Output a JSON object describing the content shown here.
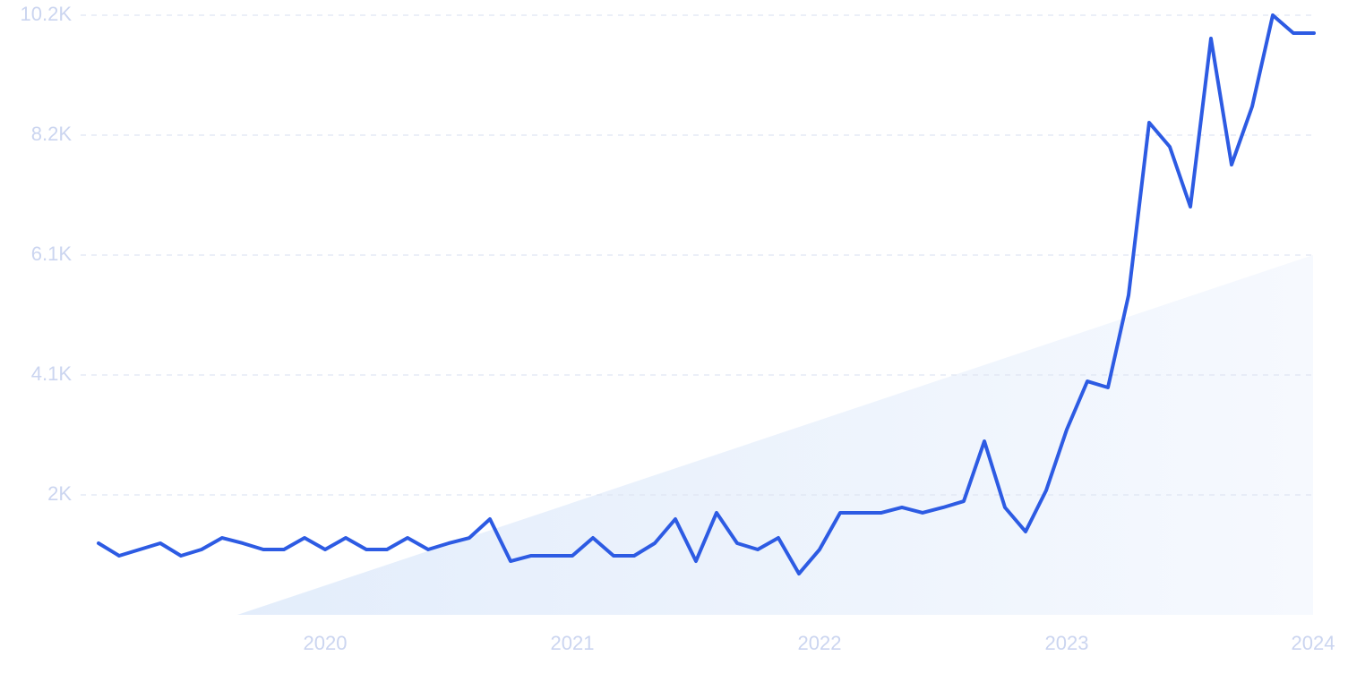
{
  "chart_data": {
    "type": "line",
    "categories": [
      null,
      null,
      null,
      null,
      null,
      null,
      null,
      null,
      null,
      null,
      null,
      "2020",
      null,
      null,
      null,
      null,
      null,
      null,
      null,
      null,
      null,
      null,
      null,
      "2021",
      null,
      null,
      null,
      null,
      null,
      null,
      null,
      null,
      null,
      null,
      null,
      "2022",
      null,
      null,
      null,
      null,
      null,
      null,
      null,
      null,
      null,
      null,
      null,
      "2023",
      null,
      null,
      null,
      null,
      null,
      null,
      null,
      null,
      null,
      null,
      null,
      "2024"
    ],
    "values": [
      1218,
      1005,
      1111,
      1218,
      1005,
      1111,
      1309,
      1218,
      1111,
      1111,
      1309,
      1111,
      1309,
      1111,
      1111,
      1309,
      1111,
      1218,
      1309,
      1629,
      913,
      1005,
      1005,
      1005,
      1309,
      1005,
      1005,
      1218,
      1629,
      913,
      1736,
      1218,
      1111,
      1309,
      700,
      1111,
      1736,
      1736,
      1736,
      1827,
      1736,
      1827,
      1933,
      2953,
      1827,
      1416,
      2116,
      3151,
      3973,
      3867,
      5435,
      8373,
      7962,
      6942,
      9804,
      7657,
      8647,
      10200,
      9896,
      9896
    ],
    "color": "#2d5be3",
    "ylim": [
      0,
      10200
    ],
    "yticks": [
      {
        "value": 2040,
        "label": "2K"
      },
      {
        "value": 4080,
        "label": "4.1K"
      },
      {
        "value": 6120,
        "label": "6.1K"
      },
      {
        "value": 8160,
        "label": "8.2K"
      },
      {
        "value": 10200,
        "label": "10.2K"
      }
    ],
    "grid": true
  }
}
